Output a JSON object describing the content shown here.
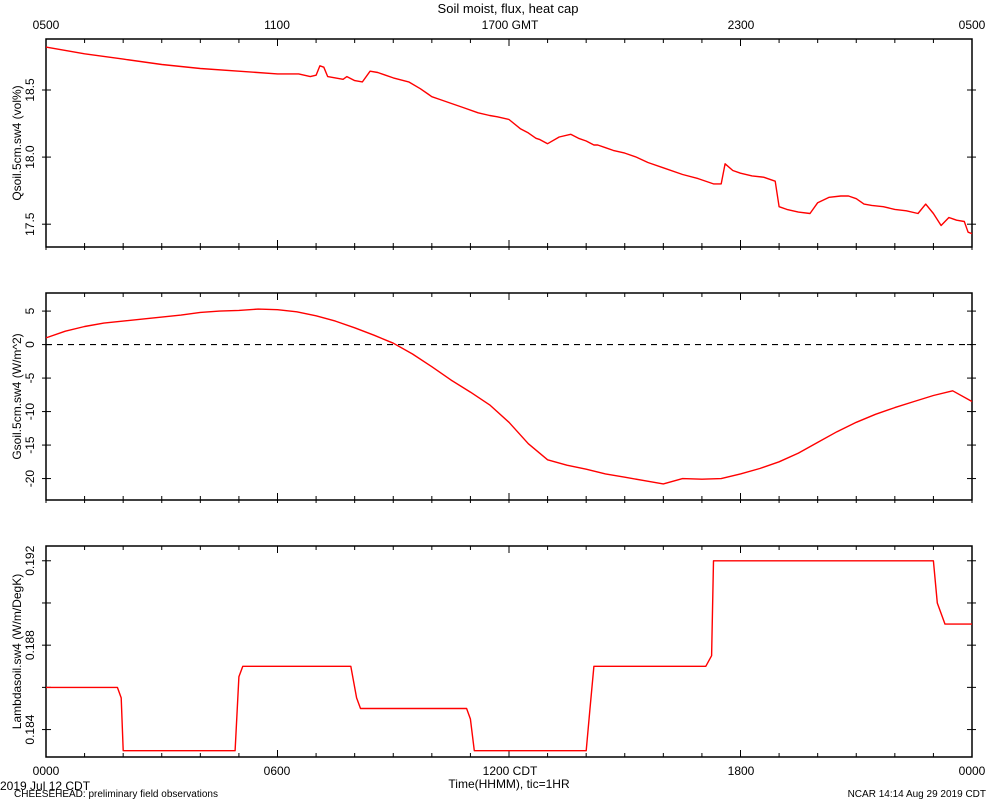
{
  "title": "Soil moist, flux, heat cap",
  "top_axis": {
    "tick_labels": [
      "0500",
      "1100",
      "1700 GMT",
      "2300",
      "0500"
    ]
  },
  "bottom_axis": {
    "tick_labels": [
      "0000",
      "0600",
      "1200 CDT",
      "1800",
      "0000"
    ],
    "label": "Time(HHMM), tic=1HR",
    "date_label": "2019 Jul 12 CDT"
  },
  "footer": {
    "left": "CHEESEHEAD: preliminary field observations",
    "right": "NCAR 14:14 Aug 29 2019 CDT"
  },
  "colors": {
    "series": "#ff0000",
    "axes": "#000000",
    "zero_line": "#000000"
  },
  "chart_data": [
    {
      "type": "line",
      "ylabel": "Qsoil.5cm.sw4 (vol%)",
      "xlim": [
        0,
        24
      ],
      "ylim": [
        17.33,
        18.88
      ],
      "yticks": [
        17.5,
        18.0,
        18.5
      ],
      "ytick_labels": [
        "17.5",
        "18.0",
        "18.5"
      ],
      "grid": false,
      "x": [
        0,
        1,
        2,
        3,
        4,
        5,
        6,
        6.55,
        6.85,
        7.0,
        7.1,
        7.2,
        7.3,
        7.5,
        7.7,
        7.8,
        8.0,
        8.2,
        8.4,
        8.6,
        8.8,
        9.0,
        9.4,
        9.7,
        9.9,
        10.0,
        10.2,
        10.5,
        10.8,
        11.2,
        11.5,
        11.7,
        12.0,
        12.3,
        12.5,
        12.7,
        12.8,
        13.0,
        13.3,
        13.6,
        13.8,
        14.0,
        14.2,
        14.3,
        14.5,
        14.7,
        15.0,
        15.3,
        15.6,
        16.0,
        16.5,
        16.9,
        17.3,
        17.5,
        17.6,
        17.8,
        18.0,
        18.3,
        18.6,
        18.9,
        19.0,
        19.2,
        19.5,
        19.8,
        20.0,
        20.3,
        20.6,
        20.8,
        21.0,
        21.2,
        21.4,
        21.7,
        22.0,
        22.3,
        22.6,
        22.8,
        23.0,
        23.2,
        23.4,
        23.5,
        23.6,
        23.8,
        23.9,
        24.0
      ],
      "y": [
        18.82,
        18.77,
        18.73,
        18.69,
        18.66,
        18.64,
        18.62,
        18.62,
        18.6,
        18.61,
        18.68,
        18.67,
        18.6,
        18.59,
        18.58,
        18.6,
        18.57,
        18.56,
        18.64,
        18.63,
        18.61,
        18.59,
        18.56,
        18.51,
        18.47,
        18.45,
        18.43,
        18.4,
        18.37,
        18.33,
        18.31,
        18.3,
        18.28,
        18.21,
        18.18,
        18.14,
        18.13,
        18.1,
        18.15,
        18.17,
        18.14,
        18.12,
        18.09,
        18.09,
        18.07,
        18.05,
        18.03,
        18.0,
        17.96,
        17.92,
        17.87,
        17.84,
        17.8,
        17.8,
        17.95,
        17.9,
        17.88,
        17.86,
        17.85,
        17.82,
        17.63,
        17.61,
        17.59,
        17.58,
        17.66,
        17.7,
        17.71,
        17.71,
        17.69,
        17.65,
        17.64,
        17.63,
        17.61,
        17.6,
        17.58,
        17.65,
        17.58,
        17.49,
        17.55,
        17.54,
        17.53,
        17.52,
        17.44,
        17.43
      ]
    },
    {
      "type": "line",
      "ylabel": "Gsoil.5cm.sw4 (W/m^2)",
      "xlim": [
        0,
        24
      ],
      "ylim": [
        -23.2,
        7.7
      ],
      "yticks": [
        -20,
        -15,
        -10,
        -5,
        0,
        5
      ],
      "ytick_labels": [
        "-20",
        "-15",
        "-10",
        "-5",
        "0",
        "5"
      ],
      "zero_line": 0,
      "grid": false,
      "x": [
        0,
        0.5,
        1,
        1.5,
        2,
        2.5,
        3,
        3.5,
        4,
        4.5,
        5,
        5.5,
        6,
        6.5,
        7,
        7.5,
        8,
        8.5,
        9,
        9.5,
        10,
        10.5,
        11,
        11.5,
        12,
        12.5,
        13,
        13.5,
        14,
        14.5,
        15,
        15.5,
        16,
        16.5,
        17,
        17.5,
        18,
        18.5,
        19,
        19.5,
        20,
        20.5,
        21,
        21.5,
        22,
        22.5,
        23,
        23.5,
        24
      ],
      "y": [
        1,
        2,
        2.7,
        3.2,
        3.5,
        3.8,
        4.1,
        4.4,
        4.8,
        5.0,
        5.1,
        5.3,
        5.2,
        4.9,
        4.3,
        3.5,
        2.5,
        1.4,
        0.2,
        -1.4,
        -3.3,
        -5.3,
        -7.1,
        -9.0,
        -11.6,
        -14.8,
        -17.2,
        -18.0,
        -18.6,
        -19.3,
        -19.8,
        -20.3,
        -20.8,
        -20.0,
        -20.1,
        -20.0,
        -19.3,
        -18.5,
        -17.5,
        -16.2,
        -14.6,
        -13.0,
        -11.6,
        -10.4,
        -9.4,
        -8.5,
        -7.6,
        -6.9,
        -8.5
      ]
    },
    {
      "type": "line",
      "ylabel": "Lambdasoil.sw4 (W/m/DegK)",
      "xlim": [
        0,
        24
      ],
      "ylim": [
        0.1827,
        0.1927
      ],
      "yticks": [
        0.184,
        0.186,
        0.188,
        0.19,
        0.192
      ],
      "ytick_labels": [
        "0.184",
        "",
        "0.188",
        "",
        "0.192"
      ],
      "grid": false,
      "x": [
        0,
        1.85,
        1.95,
        2.0,
        4.9,
        5.0,
        5.1,
        7.9,
        8.05,
        8.15,
        10.9,
        11.0,
        11.1,
        14.0,
        14.1,
        14.2,
        17.1,
        17.25,
        17.3,
        23.0,
        23.1,
        23.3,
        24.0
      ],
      "y": [
        0.186,
        0.186,
        0.1855,
        0.183,
        0.183,
        0.1865,
        0.187,
        0.187,
        0.1855,
        0.185,
        0.185,
        0.1845,
        0.183,
        0.183,
        0.185,
        0.187,
        0.187,
        0.1875,
        0.192,
        0.192,
        0.19,
        0.189,
        0.189
      ]
    }
  ]
}
